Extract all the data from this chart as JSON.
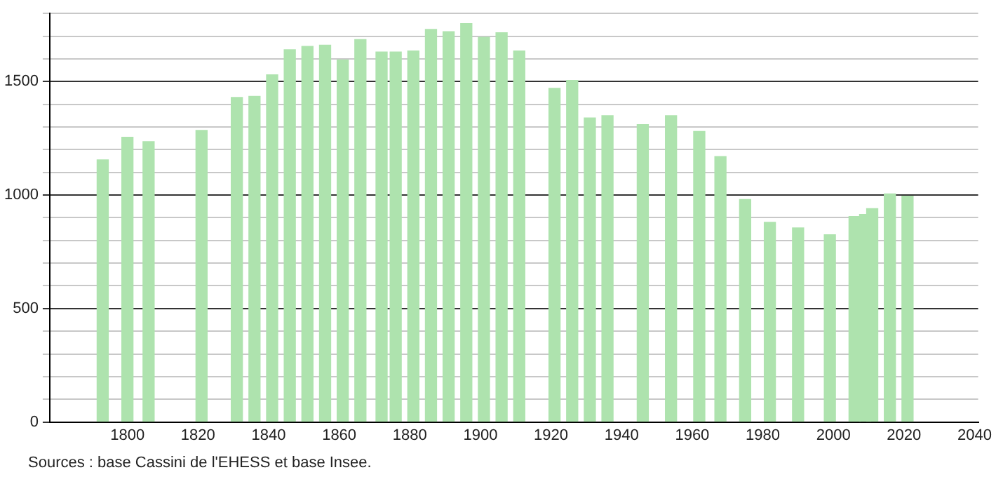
{
  "chart_data": {
    "type": "bar",
    "color": "#aee3ae",
    "x": [
      1793,
      1800,
      1806,
      1821,
      1831,
      1836,
      1841,
      1846,
      1851,
      1856,
      1861,
      1866,
      1872,
      1876,
      1881,
      1886,
      1891,
      1896,
      1901,
      1906,
      1911,
      1921,
      1926,
      1931,
      1936,
      1946,
      1954,
      1962,
      1968,
      1975,
      1982,
      1990,
      1999,
      2006,
      2009,
      2011,
      2016,
      2021
    ],
    "values": [
      1155,
      1255,
      1235,
      1285,
      1430,
      1435,
      1530,
      1640,
      1655,
      1660,
      1595,
      1685,
      1630,
      1630,
      1635,
      1730,
      1720,
      1755,
      1695,
      1715,
      1635,
      1470,
      1505,
      1340,
      1350,
      1310,
      1350,
      1280,
      1170,
      980,
      880,
      855,
      825,
      905,
      915,
      940,
      1005,
      995
    ],
    "xlim": [
      1778,
      2041
    ],
    "xticks": [
      1800,
      1820,
      1840,
      1860,
      1880,
      1900,
      1920,
      1940,
      1960,
      1980,
      2000,
      2020,
      2040
    ],
    "ylim": [
      0,
      1800
    ],
    "yticks": [
      0,
      {
        "value": 100,
        "label": null
      },
      {
        "value": 200,
        "label": null
      },
      {
        "value": 300,
        "label": null
      },
      {
        "value": 400,
        "label": null
      },
      500,
      {
        "value": 600,
        "label": null
      },
      {
        "value": 700,
        "label": null
      },
      {
        "value": 800,
        "label": null
      },
      {
        "value": 900,
        "label": null
      },
      1000,
      {
        "value": 1100,
        "label": null
      },
      {
        "value": 1200,
        "label": null
      },
      {
        "value": 1300,
        "label": null
      },
      {
        "value": 1400,
        "label": null
      },
      1500,
      {
        "value": 1600,
        "label": null
      },
      {
        "value": 1700,
        "label": null
      },
      {
        "value": 1800,
        "label": null
      }
    ],
    "grid": "y",
    "annotations": [
      "Sources : base Cassini de l'EHESS et base Insee."
    ]
  }
}
